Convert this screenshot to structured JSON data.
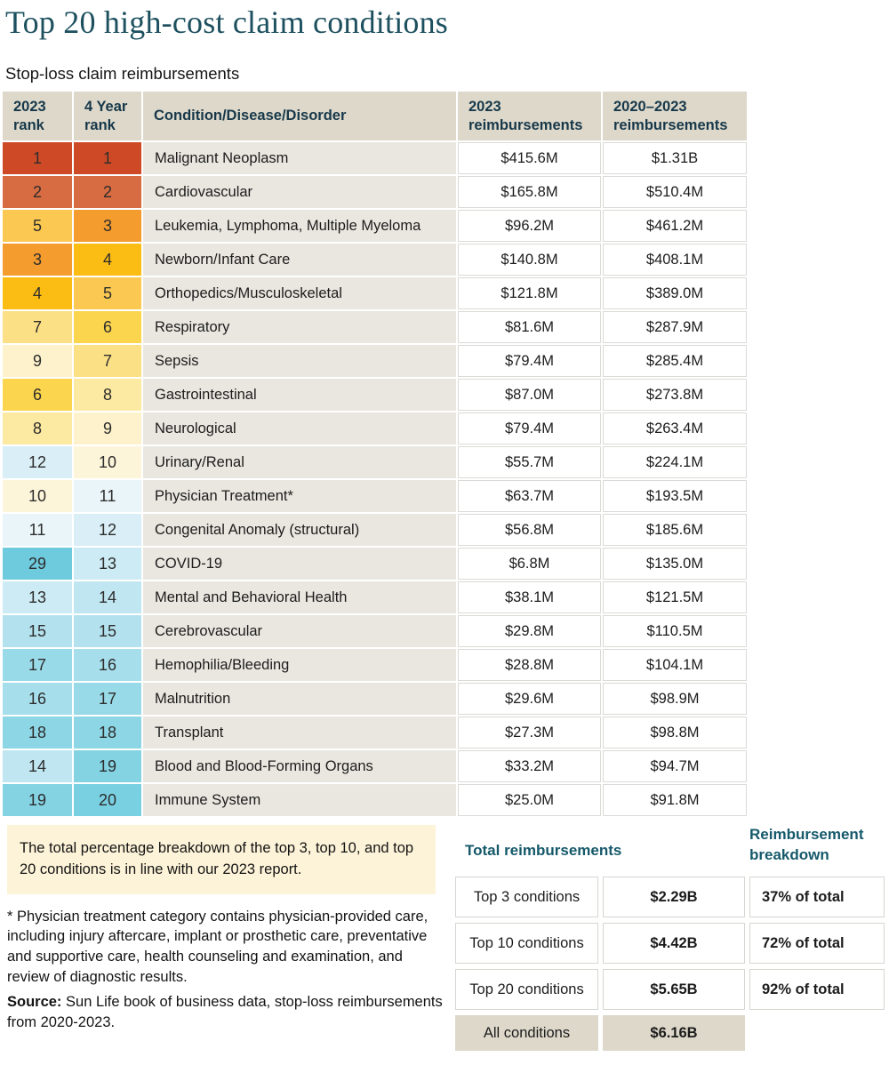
{
  "title": "Top 20 high-cost claim conditions",
  "subtitle": "Stop-loss claim reimbursements",
  "chart_data": {
    "type": "table",
    "title": "Top 20 high-cost claim conditions",
    "subtitle": "Stop-loss claim reimbursements",
    "columns": [
      "2023 rank",
      "4 Year rank",
      "Condition/Disease/Disorder",
      "2023 reimbursements",
      "2020–2023 reimbursements"
    ],
    "rows": [
      {
        "rank_2023": "1",
        "rank_4yr": "1",
        "condition": "Malignant Neoplasm",
        "reimb_2023": "$415.6M",
        "reimb_2020_2023": "$1.31B"
      },
      {
        "rank_2023": "2",
        "rank_4yr": "2",
        "condition": "Cardiovascular",
        "reimb_2023": "$165.8M",
        "reimb_2020_2023": "$510.4M"
      },
      {
        "rank_2023": "5",
        "rank_4yr": "3",
        "condition": "Leukemia, Lymphoma, Multiple Myeloma",
        "reimb_2023": "$96.2M",
        "reimb_2020_2023": "$461.2M"
      },
      {
        "rank_2023": "3",
        "rank_4yr": "4",
        "condition": "Newborn/Infant Care",
        "reimb_2023": "$140.8M",
        "reimb_2020_2023": "$408.1M"
      },
      {
        "rank_2023": "4",
        "rank_4yr": "5",
        "condition": "Orthopedics/Musculoskeletal",
        "reimb_2023": "$121.8M",
        "reimb_2020_2023": "$389.0M"
      },
      {
        "rank_2023": "7",
        "rank_4yr": "6",
        "condition": "Respiratory",
        "reimb_2023": "$81.6M",
        "reimb_2020_2023": "$287.9M"
      },
      {
        "rank_2023": "9",
        "rank_4yr": "7",
        "condition": "Sepsis",
        "reimb_2023": "$79.4M",
        "reimb_2020_2023": "$285.4M"
      },
      {
        "rank_2023": "6",
        "rank_4yr": "8",
        "condition": "Gastrointestinal",
        "reimb_2023": "$87.0M",
        "reimb_2020_2023": "$273.8M"
      },
      {
        "rank_2023": "8",
        "rank_4yr": "9",
        "condition": "Neurological",
        "reimb_2023": "$79.4M",
        "reimb_2020_2023": "$263.4M"
      },
      {
        "rank_2023": "12",
        "rank_4yr": "10",
        "condition": "Urinary/Renal",
        "reimb_2023": "$55.7M",
        "reimb_2020_2023": "$224.1M"
      },
      {
        "rank_2023": "10",
        "rank_4yr": "11",
        "condition": "Physician Treatment*",
        "reimb_2023": "$63.7M",
        "reimb_2020_2023": "$193.5M"
      },
      {
        "rank_2023": "11",
        "rank_4yr": "12",
        "condition": "Congenital Anomaly (structural)",
        "reimb_2023": "$56.8M",
        "reimb_2020_2023": "$185.6M"
      },
      {
        "rank_2023": "29",
        "rank_4yr": "13",
        "condition": "COVID-19",
        "reimb_2023": "$6.8M",
        "reimb_2020_2023": "$135.0M"
      },
      {
        "rank_2023": "13",
        "rank_4yr": "14",
        "condition": "Mental and Behavioral Health",
        "reimb_2023": "$38.1M",
        "reimb_2020_2023": "$121.5M"
      },
      {
        "rank_2023": "15",
        "rank_4yr": "15",
        "condition": "Cerebrovascular",
        "reimb_2023": "$29.8M",
        "reimb_2020_2023": "$110.5M"
      },
      {
        "rank_2023": "17",
        "rank_4yr": "16",
        "condition": "Hemophilia/Bleeding",
        "reimb_2023": "$28.8M",
        "reimb_2020_2023": "$104.1M"
      },
      {
        "rank_2023": "16",
        "rank_4yr": "17",
        "condition": "Malnutrition",
        "reimb_2023": "$29.6M",
        "reimb_2020_2023": "$98.9M"
      },
      {
        "rank_2023": "18",
        "rank_4yr": "18",
        "condition": "Transplant",
        "reimb_2023": "$27.3M",
        "reimb_2020_2023": "$98.8M"
      },
      {
        "rank_2023": "14",
        "rank_4yr": "19",
        "condition": "Blood and Blood-Forming Organs",
        "reimb_2023": "$33.2M",
        "reimb_2020_2023": "$94.7M"
      },
      {
        "rank_2023": "19",
        "rank_4yr": "20",
        "condition": "Immune System",
        "reimb_2023": "$25.0M",
        "reimb_2020_2023": "$91.8M"
      }
    ],
    "totals": {
      "title": "Total reimbursements",
      "breakdown_title": "Reimbursement breakdown",
      "rows": [
        {
          "label": "Top 3 conditions",
          "value": "$2.29B",
          "breakdown": "37% of total",
          "highlight": false
        },
        {
          "label": "Top 10 conditions",
          "value": "$4.42B",
          "breakdown": "72% of total",
          "highlight": false
        },
        {
          "label": "Top 20 conditions",
          "value": "$5.65B",
          "breakdown": "92% of total",
          "highlight": false
        },
        {
          "label": "All conditions",
          "value": "$6.16B",
          "breakdown": "",
          "highlight": true
        }
      ]
    }
  },
  "rank_colors": {
    "1": "#ce4a26",
    "2": "#d76b41",
    "3": "#f49c2d",
    "4": "#fbbc13",
    "5": "#fbc851",
    "6": "#fbd54e",
    "7": "#fce085",
    "8": "#fce9a2",
    "9": "#fdf2cb",
    "10": "#fdf5da",
    "11": "#e9f5f9",
    "12": "#d9eef6",
    "13": "#cdebf4",
    "14": "#c0e6f1",
    "15": "#b3e2ee",
    "16": "#a6deeb",
    "17": "#99dae8",
    "18": "#8cd6e5",
    "19": "#83d3e3",
    "20": "#79d0e1",
    "29": "#6ecadd"
  },
  "note": "The total percentage breakdown of the top 3, top 10, and top 20 conditions is in line with our 2023 report.",
  "footnote": "* Physician treatment category contains physician-provided care, including injury aftercare, implant or prosthetic care, preventative and supportive care, health counseling and examination, and review of diagnostic results.",
  "source": {
    "label": "Source:",
    "text": " Sun Life book of business data, stop-loss reimbursements from 2020-2023."
  },
  "colors": {
    "title_teal": "#1d505f",
    "header_text": "#17384a",
    "header_bg": "#ddd8ca",
    "condition_bg": "#eae7e0",
    "note_bg": "#fdf3d8",
    "totals_header_teal": "#15596a",
    "highlight_bg": "#ddd8ca"
  }
}
